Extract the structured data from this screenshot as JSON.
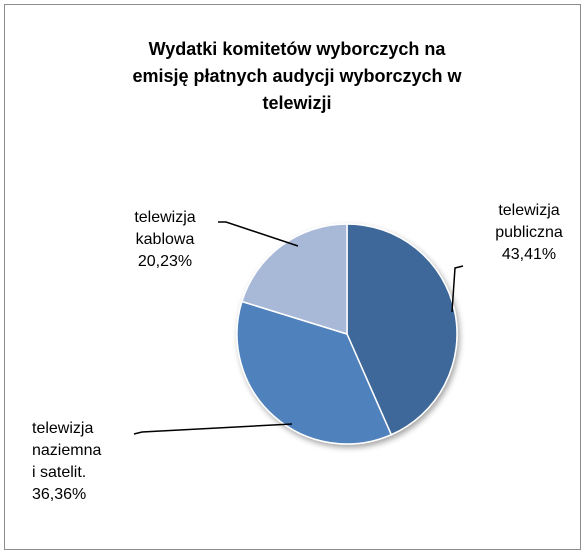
{
  "chart_data": {
    "type": "pie",
    "title": "Wydatki komitetów wyborczych na emisję płatnych audycji wyborczych w telewizji",
    "categories": [
      "telewizja publiczna",
      "telewizja naziemna i satelit.",
      "telewizja kablowa"
    ],
    "values": [
      43.41,
      36.36,
      20.23
    ],
    "value_labels": [
      "43,41%",
      "36,36%",
      "20,23%"
    ],
    "colors": [
      "#3d6799",
      "#4f81bd",
      "#a8b9d8"
    ]
  }
}
